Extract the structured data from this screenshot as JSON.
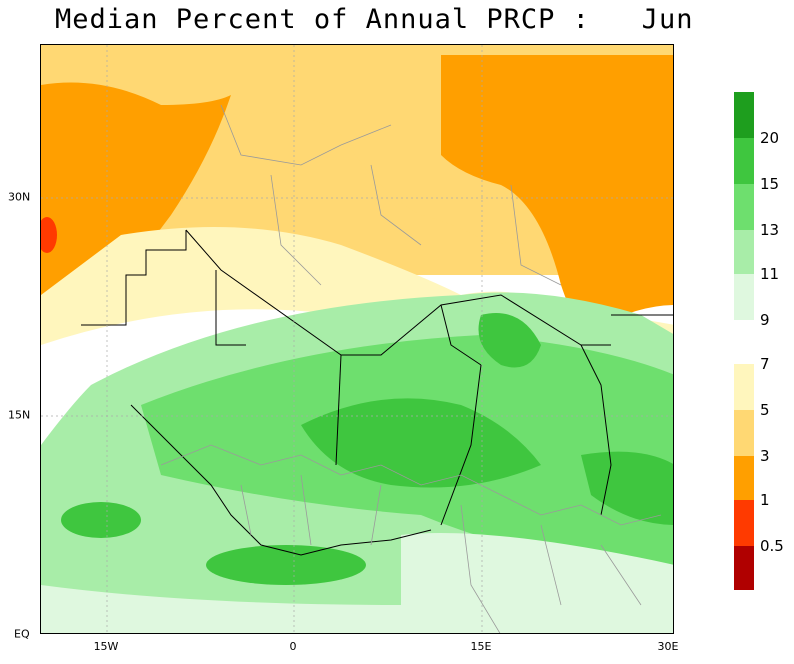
{
  "title": "Median Percent of Annual PRCP :   Jun",
  "map": {
    "region": "North and West Africa",
    "x_ticks": [
      "15W",
      "0",
      "15E",
      "30E"
    ],
    "y_ticks": [
      "30N",
      "15N",
      "EQ"
    ]
  },
  "legend": {
    "labels": [
      "20",
      "15",
      "13",
      "11",
      "9",
      "7",
      "5",
      "3",
      "1",
      "0.5"
    ],
    "colors": {
      "c20plus": "#1e9e1e",
      "c15_20": "#3fc63f",
      "c13_15": "#6edf6e",
      "c11_13": "#a8eda8",
      "c9_11": "#dff8df",
      "c5_7": "#fff6bd",
      "c3_5": "#ffd873",
      "c1_3": "#ff9f00",
      "c05_1": "#ff3a00",
      "c0_05": "#b00000"
    }
  }
}
